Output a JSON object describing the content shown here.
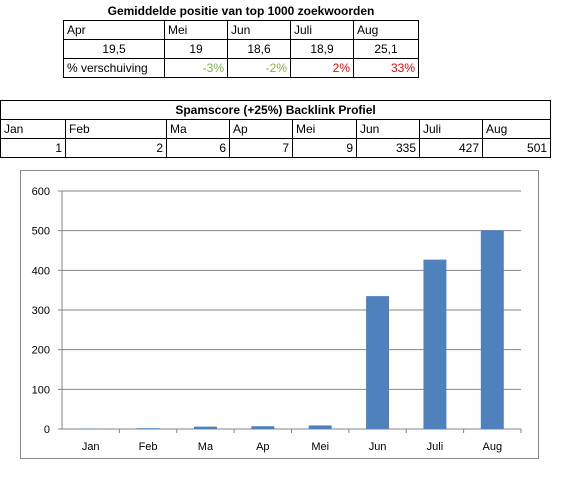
{
  "table1": {
    "title": "Gemiddelde positie van top 1000 zoekwoorden",
    "header": [
      "Apr",
      "Mei",
      "Jun",
      "Juli",
      "Aug"
    ],
    "values": [
      "19,5",
      "19",
      "18,6",
      "18,9",
      "25,1"
    ],
    "shift_label": "% verschuiving",
    "shifts": [
      "-3%",
      "-2%",
      "2%",
      "33%"
    ]
  },
  "table2": {
    "title": "Spamscore (+25%) Backlink Profiel",
    "header": [
      "Jan",
      "Feb",
      "Ma",
      "Ap",
      "Mei",
      "Jun",
      "Juli",
      "Aug"
    ],
    "values": [
      "1",
      "2",
      "6",
      "7",
      "9",
      "335",
      "427",
      "501"
    ]
  },
  "chart_data": {
    "type": "bar",
    "categories": [
      "Jan",
      "Feb",
      "Ma",
      "Ap",
      "Mei",
      "Jun",
      "Juli",
      "Aug"
    ],
    "values": [
      1,
      2,
      6,
      7,
      9,
      335,
      427,
      501
    ],
    "ylim": [
      0,
      600
    ],
    "yticks": [
      "0",
      "100",
      "200",
      "300",
      "400",
      "500",
      "600"
    ],
    "grid": true,
    "bar_color": "#4f81bd"
  }
}
